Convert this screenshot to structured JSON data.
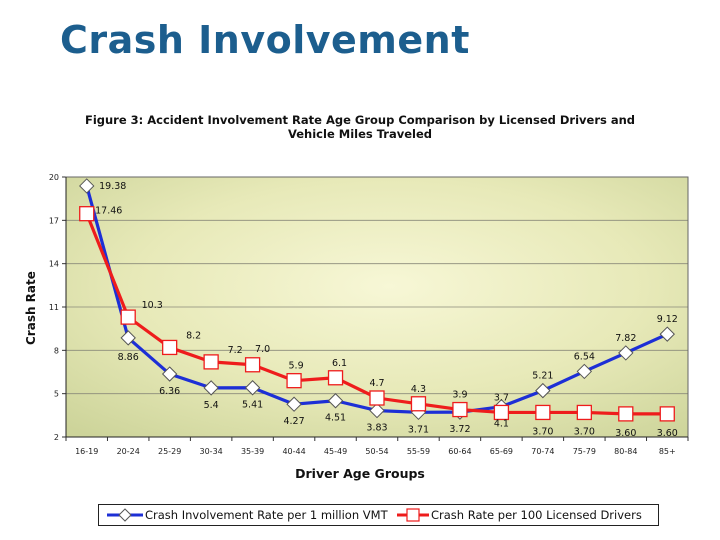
{
  "slide": {
    "title": "Crash Involvement"
  },
  "chart_data": {
    "type": "line",
    "title": "Figure 3: Accident Involvement Rate Age Group Comparison by Licensed Drivers and Vehicle Miles Traveled",
    "title_lines": [
      "Figure 3: Accident Involvement Rate Age Group Comparison by Licensed Drivers and",
      "Vehicle Miles Traveled"
    ],
    "xlabel": "Driver Age Groups",
    "ylabel": "Crash Rate",
    "ylim": [
      2,
      20
    ],
    "yticks": [
      "20",
      "17",
      "14",
      "11",
      "8",
      "5",
      "2"
    ],
    "grid": true,
    "legend_position": "bottom",
    "categories": [
      "16-19",
      "20-24",
      "25-29",
      "30-34",
      "35-39",
      "40-44",
      "45-49",
      "50-54",
      "55-59",
      "60-64",
      "65-69",
      "70-74",
      "75-79",
      "80-84",
      "85+"
    ],
    "series": [
      {
        "name": "Crash Involvement Rate per 1 million VMT",
        "color": "#1d2fd6",
        "marker": "diamond",
        "values": [
          19.38,
          8.86,
          6.36,
          5.4,
          5.41,
          4.27,
          4.51,
          3.83,
          3.71,
          3.72,
          4.1,
          5.21,
          6.54,
          7.82,
          9.12
        ],
        "labels": [
          "19.38",
          "8.86",
          "6.36",
          "5.4",
          "5.41",
          "4.27",
          "4.51",
          "3.83",
          "3.71",
          "3.72",
          "4.1",
          "5.21",
          "6.54",
          "7.82",
          "9.12"
        ]
      },
      {
        "name": "Crash Rate per 100 Licensed Drivers",
        "color": "#ee1c1c",
        "marker": "square",
        "values": [
          17.46,
          10.3,
          8.2,
          7.2,
          7.0,
          5.9,
          6.1,
          4.7,
          4.3,
          3.9,
          3.7,
          3.7,
          3.7,
          3.6,
          3.6
        ],
        "labels": [
          "17.46",
          "10.3",
          "8.2",
          "7.2",
          "7.0",
          "5.9",
          "6.1",
          "4.7",
          "4.3",
          "3.9",
          "3.7",
          "3.70",
          "3.70",
          "3.60",
          "3.60"
        ]
      }
    ]
  }
}
